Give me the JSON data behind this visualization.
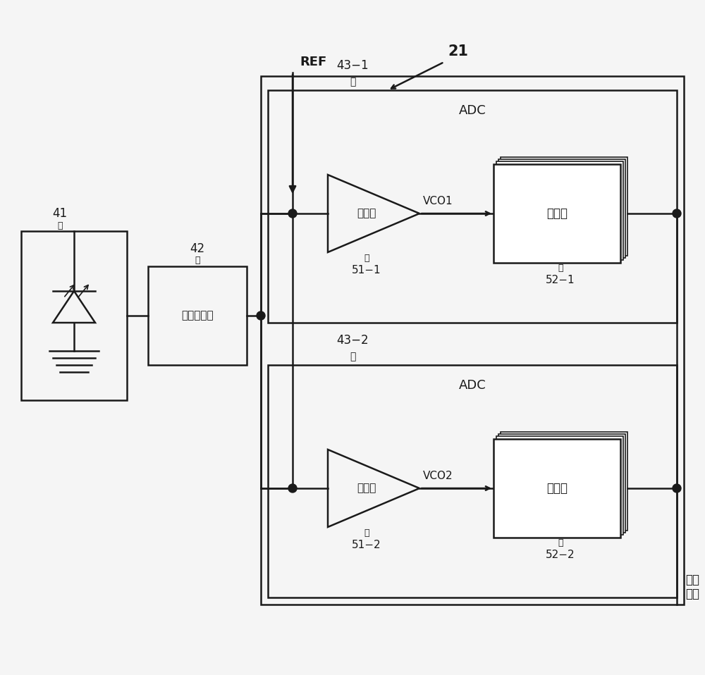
{
  "bg_color": "#f5f5f5",
  "line_color": "#1a1a1a",
  "label_21": "21",
  "label_41": "41",
  "label_42": "42",
  "label_43_1": "43−1",
  "label_43_2": "43−2",
  "label_51_1": "51−1",
  "label_51_2": "51−2",
  "label_52_1": "52−1",
  "label_52_2": "52−2",
  "label_ADC": "ADC",
  "label_REF": "REF",
  "label_VCO1": "VCO1",
  "label_VCO2": "VCO2",
  "label_comparator": "比较器",
  "label_latch": "锁存部",
  "label_charge": "电荷分配部",
  "label_data_bus": "数据\n总线",
  "font_size_label": 13,
  "font_size_ref": 12,
  "font_size_num": 12,
  "font_size_chinese": 13
}
